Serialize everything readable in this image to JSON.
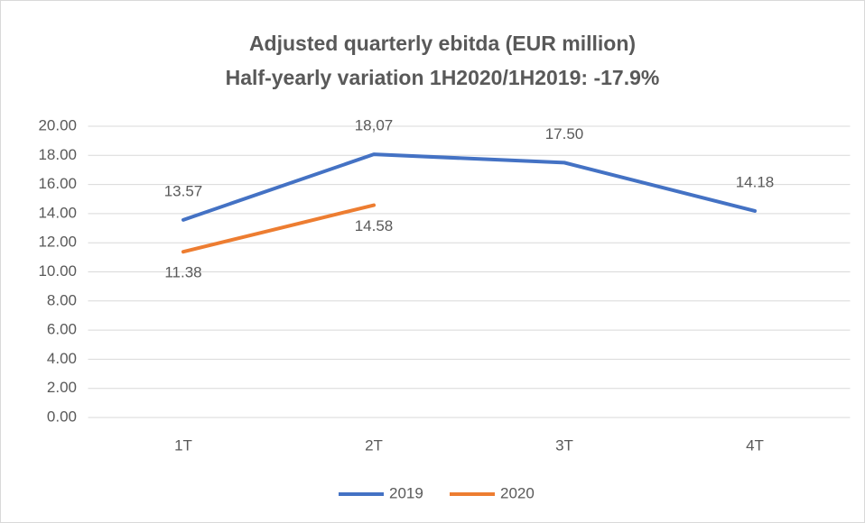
{
  "chart_data": {
    "type": "line",
    "title": [
      "Adjusted quarterly ebitda (EUR million)",
      "Half-yearly variation 1H2020/1H2019: -17.9%"
    ],
    "categories": [
      "1T",
      "2T",
      "3T",
      "4T"
    ],
    "series": [
      {
        "name": "2019",
        "color": "#4472c4",
        "values": [
          13.57,
          18.07,
          17.5,
          14.18
        ],
        "value_labels": [
          "13.57",
          "18,07",
          "17.50",
          "14.18"
        ],
        "label_position": "above"
      },
      {
        "name": "2020",
        "color": "#ed7d31",
        "values": [
          11.38,
          14.58,
          null,
          null
        ],
        "value_labels": [
          "11.38",
          "14.58",
          null,
          null
        ],
        "label_position": "below"
      }
    ],
    "ylim": [
      0,
      20
    ],
    "yticks": [
      {
        "value": 0,
        "label": "0.00"
      },
      {
        "value": 2,
        "label": "2.00"
      },
      {
        "value": 4,
        "label": "4.00"
      },
      {
        "value": 6,
        "label": "6.00"
      },
      {
        "value": 8,
        "label": "8.00"
      },
      {
        "value": 10,
        "label": "10.00"
      },
      {
        "value": 12,
        "label": "12.00"
      },
      {
        "value": 14,
        "label": "14.00"
      },
      {
        "value": 16,
        "label": "16.00"
      },
      {
        "value": 18,
        "label": "18.00"
      },
      {
        "value": 20,
        "label": "20.00"
      }
    ],
    "grid": true,
    "legend": "bottom"
  }
}
